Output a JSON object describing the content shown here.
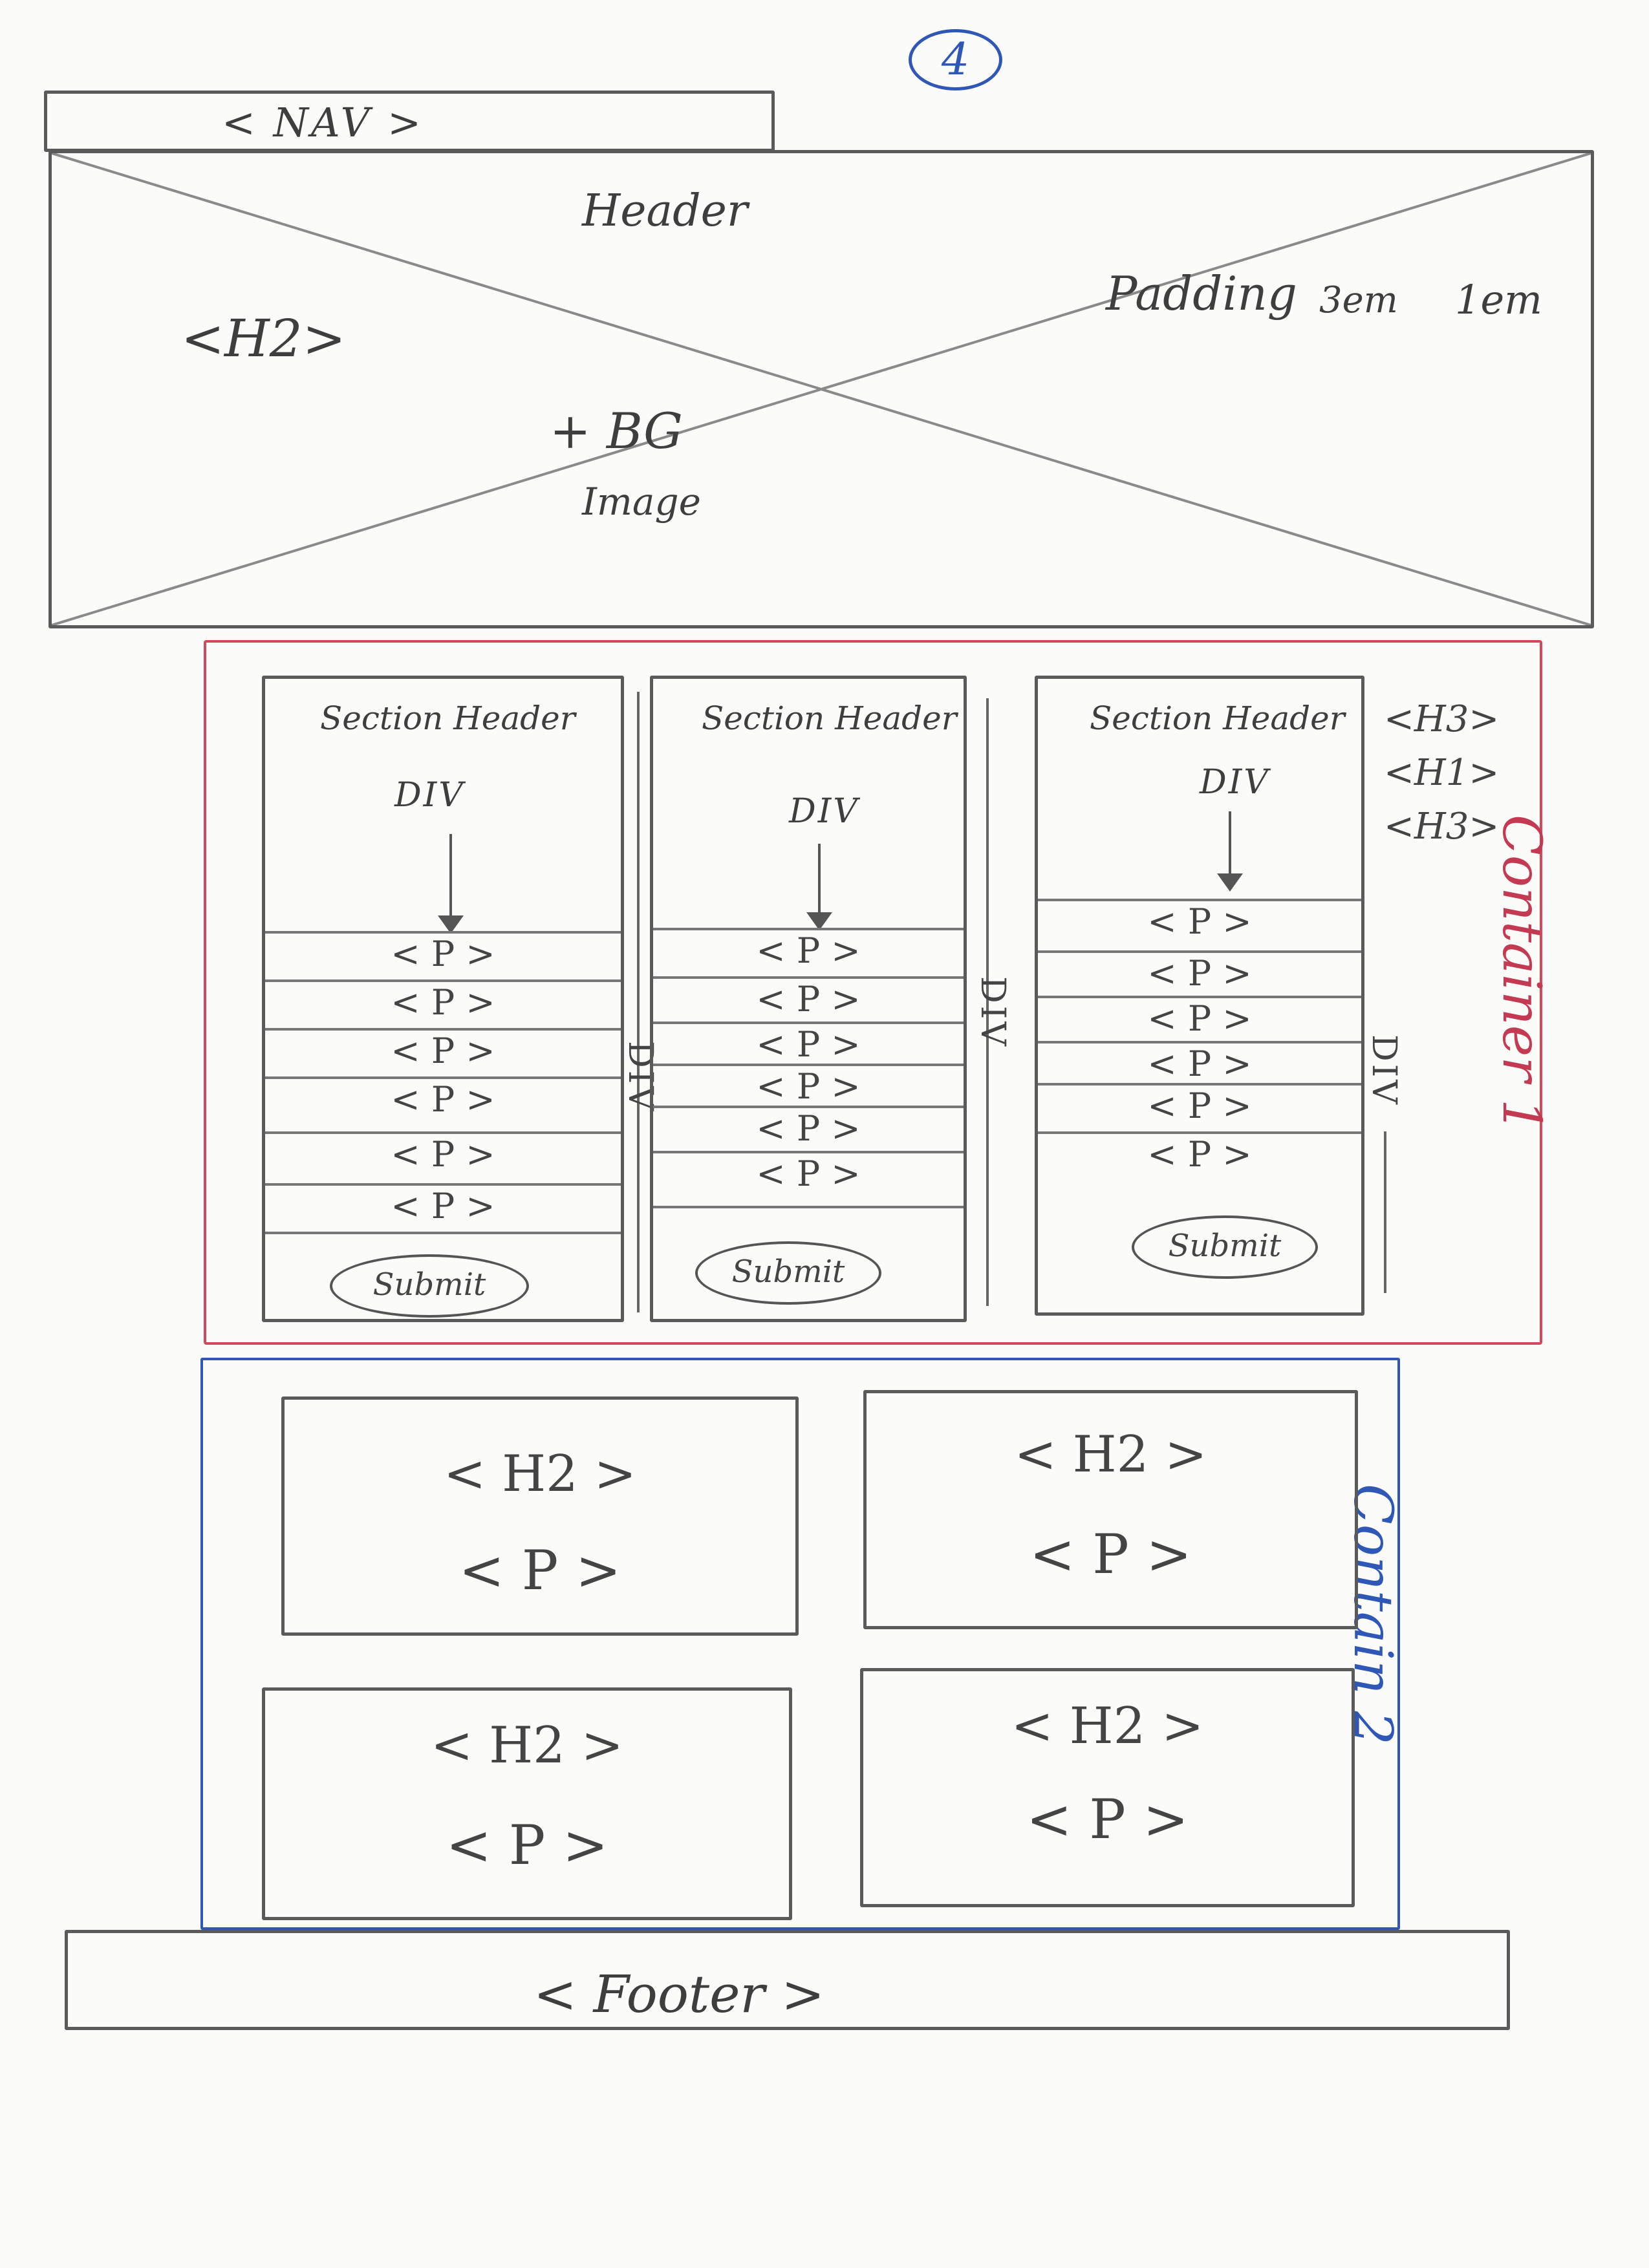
{
  "page_number": "4",
  "nav": {
    "label": "< NAV >"
  },
  "header": {
    "title": "Header",
    "h2": "<H2>",
    "padding_label": "Padding",
    "padding_value_1": "3em",
    "padding_value_2": "1em",
    "bg_line1": "+ BG",
    "bg_line2": "Image"
  },
  "container1": {
    "label": "Container 1",
    "columns": [
      {
        "section_header": "Section Header",
        "div_label": "DIV",
        "paragraphs": [
          "< P >",
          "< P >",
          "< P >",
          "< P >",
          "< P >",
          "< P >"
        ],
        "submit": "Submit",
        "side_label": "DIV"
      },
      {
        "section_header": "Section Header",
        "div_label": "DIV",
        "paragraphs": [
          "< P >",
          "< P >",
          "< P >",
          "< P >",
          "< P >",
          "< P >"
        ],
        "submit": "Submit",
        "side_label": "DIV"
      },
      {
        "section_header": "Section Header",
        "div_label": "DIV",
        "paragraphs": [
          "< P >",
          "< P >",
          "< P >",
          "< P >",
          "< P >",
          "< P >"
        ],
        "submit": "Submit",
        "side_label": "DIV"
      }
    ],
    "heading_tags": [
      "<H3>",
      "<H1>",
      "<H3>"
    ]
  },
  "container2": {
    "label": "Contain 2",
    "cards": [
      {
        "h2": "< H2 >",
        "p": "< P >"
      },
      {
        "h2": "< H2 >",
        "p": "< P >"
      },
      {
        "h2": "< H2 >",
        "p": "< P >"
      },
      {
        "h2": "< H2 >",
        "p": "< P >"
      }
    ]
  },
  "footer": {
    "label": "< Footer >"
  },
  "colors": {
    "pencil": "#5a5a5a",
    "container1": "#d04a5c",
    "container2": "#2f58b6",
    "paper": "#fbfbfa"
  }
}
